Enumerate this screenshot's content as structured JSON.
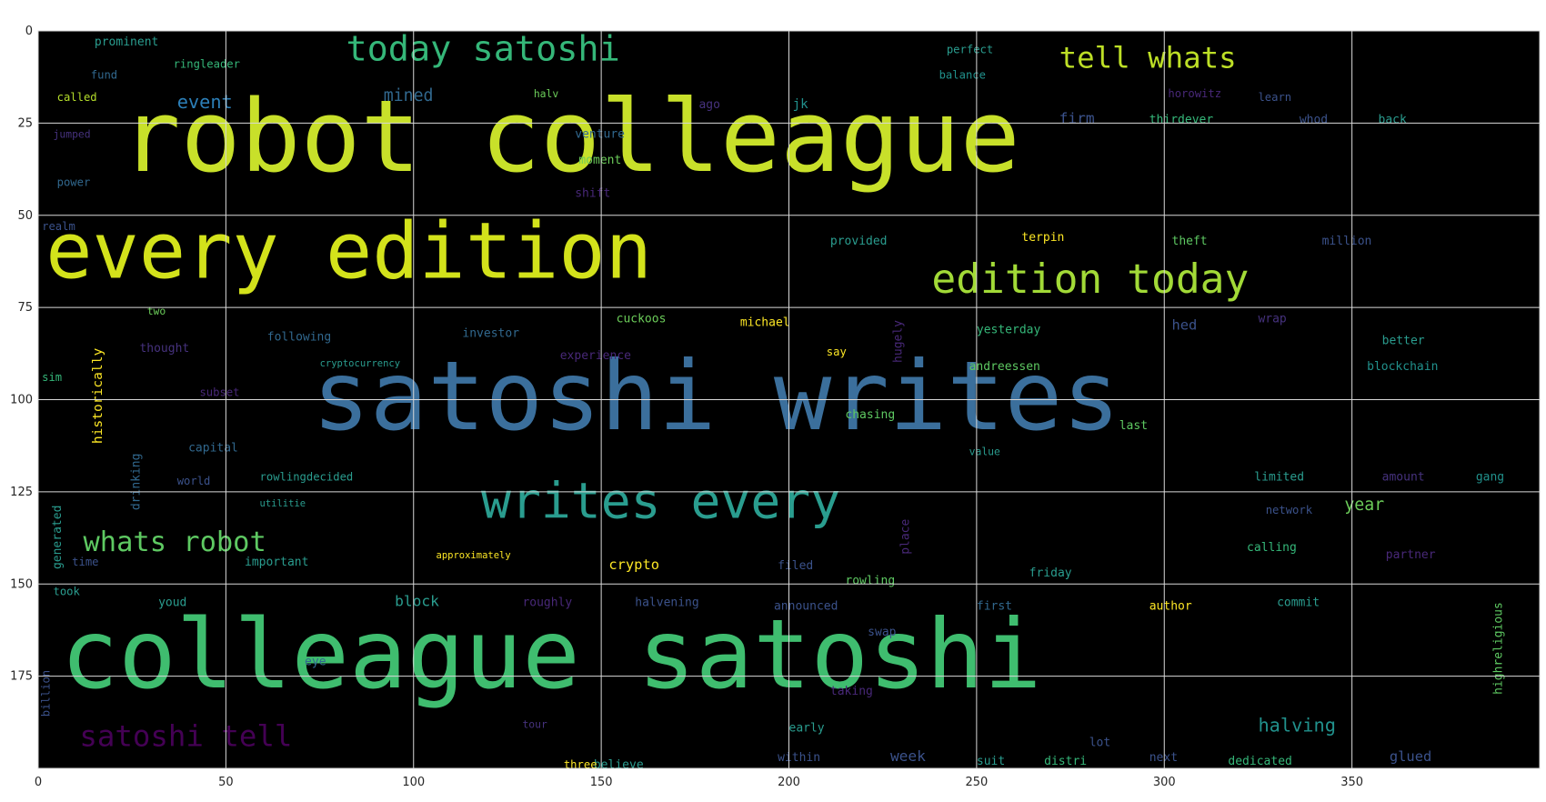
{
  "chart_data": {
    "type": "wordcloud",
    "title": "",
    "xlabel": "",
    "ylabel": "",
    "xlim": [
      0,
      400
    ],
    "ylim": [
      200,
      0
    ],
    "background_color": "#000000",
    "grid": true,
    "xticks": [
      0,
      50,
      100,
      150,
      200,
      250,
      300,
      350
    ],
    "yticks": [
      0,
      25,
      50,
      75,
      100,
      125,
      150,
      175
    ],
    "words": [
      {
        "text": "robot colleague",
        "x": 22,
        "y": 38,
        "size": 27,
        "color": "#c8e02a"
      },
      {
        "text": "every edition",
        "x": 2,
        "y": 67,
        "size": 21,
        "color": "#d3e21b"
      },
      {
        "text": "satoshi writes",
        "x": 73,
        "y": 108,
        "size": 26,
        "color": "#3b6f9c"
      },
      {
        "text": "colleague satoshi",
        "x": 6,
        "y": 178,
        "size": 26,
        "color": "#3fbd6f"
      },
      {
        "text": "today satoshi",
        "x": 82,
        "y": 8,
        "size": 9.5,
        "color": "#35b779"
      },
      {
        "text": "tell whats",
        "x": 272,
        "y": 10,
        "size": 8,
        "color": "#bddf26"
      },
      {
        "text": "edition today",
        "x": 238,
        "y": 71,
        "size": 11,
        "color": "#a2da37"
      },
      {
        "text": "writes every",
        "x": 118,
        "y": 132,
        "size": 13.5,
        "color": "#2a9d8f"
      },
      {
        "text": "whats robot",
        "x": 12,
        "y": 141,
        "size": 7.5,
        "color": "#5ec962"
      },
      {
        "text": "satoshi tell",
        "x": 11,
        "y": 194,
        "size": 8,
        "color": "#440154"
      },
      {
        "text": "halving",
        "x": 325,
        "y": 190,
        "size": 5,
        "color": "#21918c"
      },
      {
        "text": "year",
        "x": 348,
        "y": 130,
        "size": 4.5,
        "color": "#6ccd5a"
      },
      {
        "text": "crypto",
        "x": 152,
        "y": 146,
        "size": 3.8,
        "color": "#fde725"
      },
      {
        "text": "event",
        "x": 37,
        "y": 21,
        "size": 5,
        "color": "#2c7fb8"
      },
      {
        "text": "mined",
        "x": 92,
        "y": 19,
        "size": 4.5,
        "color": "#31688e"
      },
      {
        "text": "prominent",
        "x": 15,
        "y": 4,
        "size": 3.2,
        "color": "#2a9d8f"
      },
      {
        "text": "ringleader",
        "x": 36,
        "y": 10,
        "size": 3,
        "color": "#35b779"
      },
      {
        "text": "fund",
        "x": 14,
        "y": 13,
        "size": 3,
        "color": "#31688e"
      },
      {
        "text": "called",
        "x": 5,
        "y": 19,
        "size": 3,
        "color": "#b5de2b"
      },
      {
        "text": "perfect",
        "x": 242,
        "y": 6,
        "size": 3,
        "color": "#2a9d8f"
      },
      {
        "text": "balance",
        "x": 240,
        "y": 13,
        "size": 3,
        "color": "#21918c"
      },
      {
        "text": "learn",
        "x": 325,
        "y": 19,
        "size": 3,
        "color": "#3b528b"
      },
      {
        "text": "horowitz",
        "x": 301,
        "y": 18,
        "size": 3,
        "color": "#482878"
      },
      {
        "text": "firm",
        "x": 272,
        "y": 25,
        "size": 4,
        "color": "#3b528b"
      },
      {
        "text": "thirdever",
        "x": 296,
        "y": 25,
        "size": 3.2,
        "color": "#35b779"
      },
      {
        "text": "whod",
        "x": 336,
        "y": 25,
        "size": 3.2,
        "color": "#3b528b"
      },
      {
        "text": "back",
        "x": 357,
        "y": 25,
        "size": 3.2,
        "color": "#2a9d8f"
      },
      {
        "text": "halv",
        "x": 132,
        "y": 18,
        "size": 2.8,
        "color": "#6ccd5a"
      },
      {
        "text": "ago",
        "x": 176,
        "y": 21,
        "size": 3.2,
        "color": "#46327e"
      },
      {
        "text": "jk",
        "x": 201,
        "y": 21,
        "size": 3.5,
        "color": "#21918c"
      },
      {
        "text": "venture",
        "x": 143,
        "y": 29,
        "size": 3.2,
        "color": "#31688e"
      },
      {
        "text": "moment",
        "x": 144,
        "y": 36,
        "size": 3.2,
        "color": "#6ccd5a"
      },
      {
        "text": "shift",
        "x": 143,
        "y": 45,
        "size": 3.2,
        "color": "#482878"
      },
      {
        "text": "jumped",
        "x": 4,
        "y": 29,
        "size": 2.8,
        "color": "#46327e"
      },
      {
        "text": "power",
        "x": 5,
        "y": 42,
        "size": 3,
        "color": "#31688e"
      },
      {
        "text": "realm",
        "x": 1,
        "y": 54,
        "size": 3,
        "color": "#3b528b"
      },
      {
        "text": "provided",
        "x": 211,
        "y": 58,
        "size": 3.2,
        "color": "#2a9d8f"
      },
      {
        "text": "terpin",
        "x": 262,
        "y": 57,
        "size": 3.2,
        "color": "#fde725"
      },
      {
        "text": "theft",
        "x": 302,
        "y": 58,
        "size": 3.2,
        "color": "#5ec962"
      },
      {
        "text": "million",
        "x": 342,
        "y": 58,
        "size": 3.2,
        "color": "#3b528b"
      },
      {
        "text": "two",
        "x": 29,
        "y": 77,
        "size": 2.8,
        "color": "#6ccd5a"
      },
      {
        "text": "thought",
        "x": 27,
        "y": 87,
        "size": 3.2,
        "color": "#46327e"
      },
      {
        "text": "following",
        "x": 61,
        "y": 84,
        "size": 3.2,
        "color": "#31688e"
      },
      {
        "text": "cuckoos",
        "x": 154,
        "y": 79,
        "size": 3.2,
        "color": "#6ccd5a"
      },
      {
        "text": "michael",
        "x": 187,
        "y": 80,
        "size": 3.2,
        "color": "#fde725"
      },
      {
        "text": "investor",
        "x": 113,
        "y": 83,
        "size": 3.2,
        "color": "#31688e"
      },
      {
        "text": "experience",
        "x": 139,
        "y": 89,
        "size": 3.2,
        "color": "#482878"
      },
      {
        "text": "yesterday",
        "x": 250,
        "y": 82,
        "size": 3.2,
        "color": "#35b779"
      },
      {
        "text": "hed",
        "x": 302,
        "y": 81,
        "size": 3.8,
        "color": "#3b528b"
      },
      {
        "text": "wrap",
        "x": 325,
        "y": 79,
        "size": 3.2,
        "color": "#46327e"
      },
      {
        "text": "better",
        "x": 358,
        "y": 85,
        "size": 3.2,
        "color": "#2a9d8f"
      },
      {
        "text": "andreessen",
        "x": 248,
        "y": 92,
        "size": 3.2,
        "color": "#5ec962"
      },
      {
        "text": "blockchain",
        "x": 354,
        "y": 92,
        "size": 3.2,
        "color": "#21918c"
      },
      {
        "text": "say",
        "x": 210,
        "y": 88,
        "size": 3,
        "color": "#fde725"
      },
      {
        "text": "sim",
        "x": 1,
        "y": 95,
        "size": 3,
        "color": "#35b779"
      },
      {
        "text": "subset",
        "x": 43,
        "y": 99,
        "size": 3,
        "color": "#482878"
      },
      {
        "text": "cryptocurrency",
        "x": 75,
        "y": 91,
        "size": 2.6,
        "color": "#2a9d8f"
      },
      {
        "text": "capital",
        "x": 40,
        "y": 114,
        "size": 3.2,
        "color": "#31688e"
      },
      {
        "text": "chasing",
        "x": 215,
        "y": 105,
        "size": 3.2,
        "color": "#5ec962"
      },
      {
        "text": "last",
        "x": 288,
        "y": 108,
        "size": 3.2,
        "color": "#5ec962"
      },
      {
        "text": "world",
        "x": 37,
        "y": 123,
        "size": 3,
        "color": "#3b528b"
      },
      {
        "text": "rowlingdecided",
        "x": 59,
        "y": 122,
        "size": 3,
        "color": "#2a9d8f"
      },
      {
        "text": "value",
        "x": 248,
        "y": 115,
        "size": 2.8,
        "color": "#2a9d8f"
      },
      {
        "text": "limited",
        "x": 324,
        "y": 122,
        "size": 3.2,
        "color": "#2a9d8f"
      },
      {
        "text": "amount",
        "x": 358,
        "y": 122,
        "size": 3.2,
        "color": "#46327e"
      },
      {
        "text": "gang",
        "x": 383,
        "y": 122,
        "size": 3.2,
        "color": "#21918c"
      },
      {
        "text": "utilitie",
        "x": 59,
        "y": 129,
        "size": 2.6,
        "color": "#2a9d8f"
      },
      {
        "text": "network",
        "x": 327,
        "y": 131,
        "size": 3,
        "color": "#3b528b"
      },
      {
        "text": "calling",
        "x": 322,
        "y": 141,
        "size": 3.2,
        "color": "#35b779"
      },
      {
        "text": "partner",
        "x": 359,
        "y": 143,
        "size": 3.2,
        "color": "#482878"
      },
      {
        "text": "time",
        "x": 9,
        "y": 145,
        "size": 3,
        "color": "#3b528b"
      },
      {
        "text": "important",
        "x": 55,
        "y": 145,
        "size": 3.2,
        "color": "#2a9d8f"
      },
      {
        "text": "approximately",
        "x": 106,
        "y": 143,
        "size": 2.6,
        "color": "#fde725"
      },
      {
        "text": "filed",
        "x": 197,
        "y": 146,
        "size": 3.2,
        "color": "#3b528b"
      },
      {
        "text": "rowling",
        "x": 215,
        "y": 150,
        "size": 3.2,
        "color": "#5ec962"
      },
      {
        "text": "friday",
        "x": 264,
        "y": 148,
        "size": 3.2,
        "color": "#2a9d8f"
      },
      {
        "text": "took",
        "x": 4,
        "y": 153,
        "size": 3,
        "color": "#2a9d8f"
      },
      {
        "text": "youd",
        "x": 32,
        "y": 156,
        "size": 3.2,
        "color": "#2a9d8f"
      },
      {
        "text": "block",
        "x": 95,
        "y": 156,
        "size": 4,
        "color": "#2a9d8f"
      },
      {
        "text": "roughly",
        "x": 129,
        "y": 156,
        "size": 3.2,
        "color": "#482878"
      },
      {
        "text": "halvening",
        "x": 159,
        "y": 156,
        "size": 3.2,
        "color": "#3b528b"
      },
      {
        "text": "announced",
        "x": 196,
        "y": 157,
        "size": 3.2,
        "color": "#3b528b"
      },
      {
        "text": "first",
        "x": 250,
        "y": 157,
        "size": 3.2,
        "color": "#31688e"
      },
      {
        "text": "author",
        "x": 296,
        "y": 157,
        "size": 3.2,
        "color": "#fde725"
      },
      {
        "text": "commit",
        "x": 330,
        "y": 156,
        "size": 3.2,
        "color": "#2a9d8f"
      },
      {
        "text": "swap",
        "x": 221,
        "y": 164,
        "size": 3.2,
        "color": "#3b528b"
      },
      {
        "text": "eye",
        "x": 71,
        "y": 172,
        "size": 3.2,
        "color": "#31688e"
      },
      {
        "text": "taking",
        "x": 211,
        "y": 180,
        "size": 3.2,
        "color": "#482878"
      },
      {
        "text": "early",
        "x": 200,
        "y": 190,
        "size": 3.2,
        "color": "#2a9d8f"
      },
      {
        "text": "lot",
        "x": 280,
        "y": 194,
        "size": 3.2,
        "color": "#3b528b"
      },
      {
        "text": "next",
        "x": 296,
        "y": 198,
        "size": 3.2,
        "color": "#3b528b"
      },
      {
        "text": "glued",
        "x": 360,
        "y": 198,
        "size": 3.8,
        "color": "#3b528b"
      },
      {
        "text": "tour",
        "x": 129,
        "y": 189,
        "size": 2.8,
        "color": "#46327e"
      },
      {
        "text": "within",
        "x": 197,
        "y": 198,
        "size": 3.2,
        "color": "#3b528b"
      },
      {
        "text": "week",
        "x": 227,
        "y": 198,
        "size": 4,
        "color": "#3b528b"
      },
      {
        "text": "suit",
        "x": 250,
        "y": 199,
        "size": 3.2,
        "color": "#2a9d8f"
      },
      {
        "text": "distri",
        "x": 268,
        "y": 199,
        "size": 3.2,
        "color": "#35b779"
      },
      {
        "text": "dedicated",
        "x": 317,
        "y": 199,
        "size": 3.2,
        "color": "#35b779"
      },
      {
        "text": "believe",
        "x": 148,
        "y": 200,
        "size": 3.2,
        "color": "#2a9d8f"
      },
      {
        "text": "three",
        "x": 140,
        "y": 200,
        "size": 3,
        "color": "#fde725"
      },
      {
        "text": "historically",
        "x": 17,
        "y": 112,
        "size": 3.6,
        "color": "#fde725",
        "rotate": -90
      },
      {
        "text": "drinking",
        "x": 27,
        "y": 130,
        "size": 3.2,
        "color": "#31688e",
        "rotate": -90
      },
      {
        "text": "generated",
        "x": 6,
        "y": 146,
        "size": 3.2,
        "color": "#2a9d8f",
        "rotate": -90
      },
      {
        "text": "billion",
        "x": 3,
        "y": 186,
        "size": 3,
        "color": "#3b528b",
        "rotate": -90
      },
      {
        "text": "hugely",
        "x": 230,
        "y": 90,
        "size": 3.2,
        "color": "#482878",
        "rotate": -90
      },
      {
        "text": "place",
        "x": 232,
        "y": 142,
        "size": 3.2,
        "color": "#482878",
        "rotate": -90
      },
      {
        "text": "highreligious",
        "x": 390,
        "y": 180,
        "size": 3.2,
        "color": "#5ec962",
        "rotate": -90
      }
    ]
  }
}
